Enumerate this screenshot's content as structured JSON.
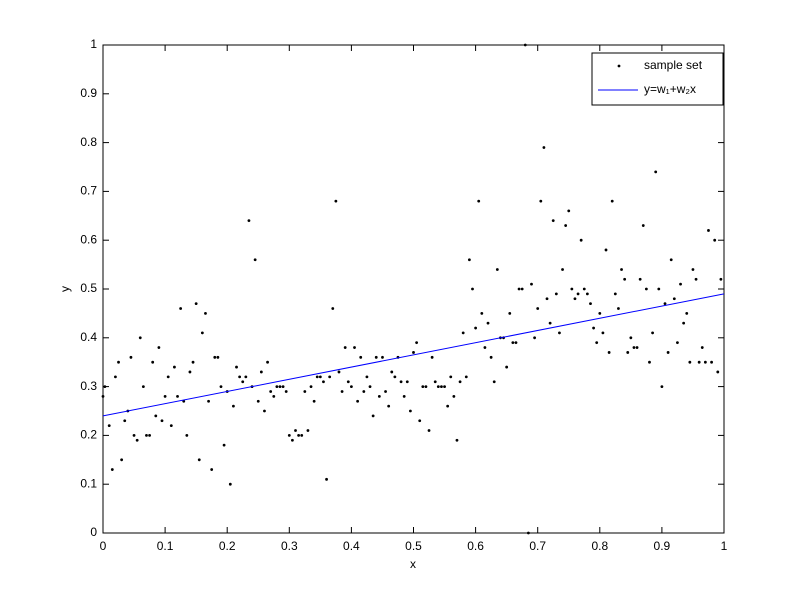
{
  "chart_data": {
    "type": "scatter",
    "xlabel": "x",
    "ylabel": "y",
    "xlim": [
      0,
      1
    ],
    "ylim": [
      0,
      1
    ],
    "xticks": [
      0,
      0.1,
      0.2,
      0.3,
      0.4,
      0.5,
      0.6,
      0.7,
      0.8,
      0.9,
      1
    ],
    "yticks": [
      0,
      0.1,
      0.2,
      0.3,
      0.4,
      0.5,
      0.6,
      0.7,
      0.8,
      0.9,
      1
    ],
    "legend": "northeast",
    "series": [
      {
        "name": "sample set",
        "color": "#000000",
        "kind": "points",
        "x": [
          0,
          0.003,
          0.01,
          0.015,
          0.02,
          0.025,
          0.03,
          0.035,
          0.04,
          0.045,
          0.05,
          0.055,
          0.06,
          0.065,
          0.07,
          0.075,
          0.08,
          0.085,
          0.09,
          0.095,
          0.1,
          0.105,
          0.11,
          0.115,
          0.12,
          0.125,
          0.13,
          0.135,
          0.14,
          0.145,
          0.15,
          0.155,
          0.16,
          0.165,
          0.17,
          0.175,
          0.18,
          0.185,
          0.19,
          0.195,
          0.2,
          0.205,
          0.21,
          0.215,
          0.22,
          0.225,
          0.23,
          0.235,
          0.24,
          0.245,
          0.25,
          0.255,
          0.26,
          0.265,
          0.27,
          0.275,
          0.28,
          0.285,
          0.29,
          0.295,
          0.3,
          0.305,
          0.31,
          0.315,
          0.32,
          0.325,
          0.33,
          0.335,
          0.34,
          0.345,
          0.35,
          0.355,
          0.36,
          0.365,
          0.37,
          0.375,
          0.38,
          0.385,
          0.39,
          0.395,
          0.4,
          0.405,
          0.41,
          0.415,
          0.42,
          0.425,
          0.43,
          0.435,
          0.44,
          0.445,
          0.45,
          0.455,
          0.46,
          0.465,
          0.47,
          0.475,
          0.48,
          0.485,
          0.49,
          0.495,
          0.5,
          0.505,
          0.51,
          0.515,
          0.52,
          0.525,
          0.53,
          0.535,
          0.54,
          0.545,
          0.55,
          0.555,
          0.56,
          0.565,
          0.57,
          0.575,
          0.58,
          0.585,
          0.59,
          0.595,
          0.6,
          0.605,
          0.61,
          0.615,
          0.62,
          0.625,
          0.63,
          0.635,
          0.64,
          0.645,
          0.65,
          0.655,
          0.66,
          0.665,
          0.67,
          0.675,
          0.68,
          0.685,
          0.69,
          0.695,
          0.7,
          0.705,
          0.71,
          0.715,
          0.72,
          0.725,
          0.73,
          0.735,
          0.74,
          0.745,
          0.75,
          0.755,
          0.76,
          0.765,
          0.77,
          0.775,
          0.78,
          0.785,
          0.79,
          0.795,
          0.8,
          0.805,
          0.81,
          0.815,
          0.82,
          0.825,
          0.83,
          0.835,
          0.84,
          0.845,
          0.85,
          0.855,
          0.86,
          0.865,
          0.87,
          0.875,
          0.88,
          0.885,
          0.89,
          0.895,
          0.9,
          0.905,
          0.91,
          0.915,
          0.92,
          0.925,
          0.93,
          0.935,
          0.94,
          0.945,
          0.95,
          0.955,
          0.96,
          0.965,
          0.97,
          0.975,
          0.98,
          0.985,
          0.99,
          0.995
        ],
        "values": [
          0.28,
          0.3,
          0.22,
          0.13,
          0.32,
          0.35,
          0.15,
          0.23,
          0.25,
          0.36,
          0.2,
          0.19,
          0.4,
          0.3,
          0.2,
          0.2,
          0.35,
          0.24,
          0.38,
          0.23,
          0.28,
          0.32,
          0.22,
          0.34,
          0.28,
          0.46,
          0.27,
          0.2,
          0.33,
          0.35,
          0.47,
          0.15,
          0.41,
          0.45,
          0.27,
          0.13,
          0.36,
          0.36,
          0.3,
          0.18,
          0.29,
          0.1,
          0.26,
          0.34,
          0.32,
          0.31,
          0.32,
          0.64,
          0.3,
          0.56,
          0.27,
          0.33,
          0.25,
          0.35,
          0.29,
          0.28,
          0.3,
          0.3,
          0.3,
          0.29,
          0.2,
          0.19,
          0.21,
          0.2,
          0.2,
          0.29,
          0.21,
          0.3,
          0.27,
          0.32,
          0.32,
          0.31,
          0.11,
          0.32,
          0.46,
          0.68,
          0.33,
          0.29,
          0.38,
          0.31,
          0.3,
          0.38,
          0.27,
          0.36,
          0.29,
          0.32,
          0.3,
          0.24,
          0.36,
          0.28,
          0.36,
          0.29,
          0.26,
          0.33,
          0.32,
          0.36,
          0.31,
          0.28,
          0.31,
          0.25,
          0.37,
          0.39,
          0.23,
          0.3,
          0.3,
          0.21,
          0.36,
          0.31,
          0.3,
          0.3,
          0.3,
          0.26,
          0.32,
          0.28,
          0.19,
          0.31,
          0.41,
          0.32,
          0.56,
          0.5,
          0.42,
          0.68,
          0.45,
          0.38,
          0.43,
          0.36,
          0.31,
          0.54,
          0.4,
          0.4,
          0.34,
          0.45,
          0.39,
          0.39,
          0.5,
          0.5,
          1,
          0,
          0.51,
          0.4,
          0.46,
          0.68,
          0.79,
          0.48,
          0.43,
          0.64,
          0.49,
          0.41,
          0.54,
          0.63,
          0.66,
          0.5,
          0.48,
          0.49,
          0.6,
          0.5,
          0.49,
          0.47,
          0.42,
          0.39,
          0.45,
          0.41,
          0.58,
          0.37,
          0.68,
          0.49,
          0.46,
          0.54,
          0.52,
          0.37,
          0.4,
          0.38,
          0.38,
          0.52,
          0.63,
          0.5,
          0.35,
          0.41,
          0.74,
          0.5,
          0.3,
          0.47,
          0.37,
          0.56,
          0.48,
          0.39,
          0.51,
          0.43,
          0.45,
          0.35,
          0.54,
          0.52,
          0.35,
          0.38,
          0.35,
          0.62,
          0.35,
          0.6,
          0.33,
          0.52
        ]
      },
      {
        "name": "y=w₁+w₂x",
        "color": "#0000ff",
        "kind": "line",
        "x": [
          0,
          1
        ],
        "values": [
          0.24,
          0.49
        ]
      }
    ]
  }
}
